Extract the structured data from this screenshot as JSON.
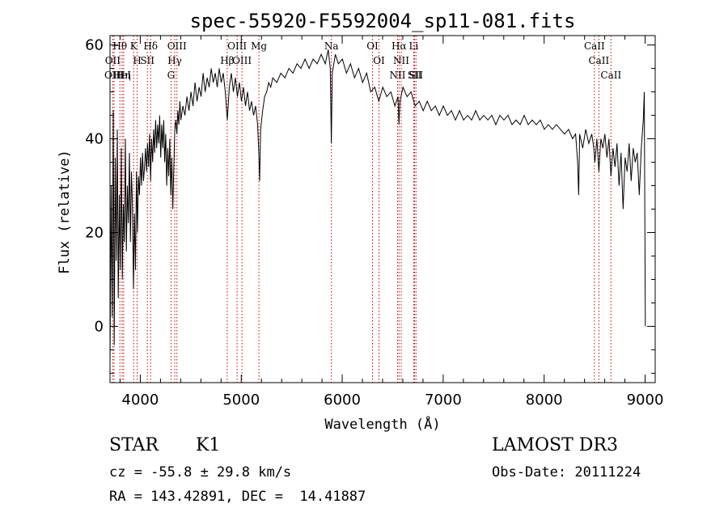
{
  "chart_data": {
    "type": "line",
    "title": "spec-55920-F5592004_sp11-081.fits",
    "xlabel": "Wavelength (Å)",
    "ylabel": "Flux (relative)",
    "xlim": [
      3700,
      9100
    ],
    "ylim": [
      -12,
      62
    ],
    "x_ticks": [
      4000,
      5000,
      6000,
      7000,
      8000,
      9000
    ],
    "y_ticks": [
      0,
      20,
      40,
      60
    ],
    "x_minor_step": 200,
    "y_minor_step": 5,
    "series": [
      {
        "name": "flux",
        "points": [
          [
            3700,
            -8
          ],
          [
            3712,
            30
          ],
          [
            3722,
            2
          ],
          [
            3732,
            46
          ],
          [
            3742,
            -4
          ],
          [
            3752,
            36
          ],
          [
            3762,
            14
          ],
          [
            3772,
            42
          ],
          [
            3782,
            6
          ],
          [
            3792,
            28
          ],
          [
            3802,
            12
          ],
          [
            3812,
            38
          ],
          [
            3822,
            10
          ],
          [
            3832,
            26
          ],
          [
            3842,
            18
          ],
          [
            3852,
            40
          ],
          [
            3862,
            16
          ],
          [
            3872,
            30
          ],
          [
            3882,
            22
          ],
          [
            3892,
            37
          ],
          [
            3902,
            18
          ],
          [
            3912,
            33
          ],
          [
            3922,
            26
          ],
          [
            3932,
            8
          ],
          [
            3942,
            24
          ],
          [
            3952,
            12
          ],
          [
            3962,
            33
          ],
          [
            3972,
            20
          ],
          [
            3982,
            32
          ],
          [
            3992,
            28
          ],
          [
            4002,
            36
          ],
          [
            4012,
            30
          ],
          [
            4022,
            37
          ],
          [
            4032,
            31
          ],
          [
            4042,
            34
          ],
          [
            4052,
            38
          ],
          [
            4062,
            33
          ],
          [
            4072,
            39
          ],
          [
            4082,
            34
          ],
          [
            4092,
            41
          ],
          [
            4102,
            31
          ],
          [
            4112,
            40
          ],
          [
            4122,
            35
          ],
          [
            4132,
            42
          ],
          [
            4142,
            37
          ],
          [
            4152,
            44
          ],
          [
            4162,
            38
          ],
          [
            4172,
            43
          ],
          [
            4182,
            39
          ],
          [
            4192,
            45
          ],
          [
            4202,
            36
          ],
          [
            4212,
            43
          ],
          [
            4222,
            38
          ],
          [
            4232,
            44
          ],
          [
            4242,
            35
          ],
          [
            4252,
            41
          ],
          [
            4262,
            30
          ],
          [
            4272,
            38
          ],
          [
            4282,
            32
          ],
          [
            4292,
            40
          ],
          [
            4302,
            28
          ],
          [
            4312,
            36
          ],
          [
            4322,
            25
          ],
          [
            4332,
            34
          ],
          [
            4342,
            42
          ],
          [
            4352,
            44
          ],
          [
            4362,
            41
          ],
          [
            4372,
            46
          ],
          [
            4382,
            43
          ],
          [
            4392,
            48
          ],
          [
            4402,
            44
          ],
          [
            4422,
            47
          ],
          [
            4442,
            45
          ],
          [
            4462,
            49
          ],
          [
            4482,
            46
          ],
          [
            4502,
            50
          ],
          [
            4522,
            47
          ],
          [
            4542,
            52
          ],
          [
            4562,
            48
          ],
          [
            4582,
            51
          ],
          [
            4602,
            49
          ],
          [
            4622,
            54
          ],
          [
            4642,
            50
          ],
          [
            4662,
            53
          ],
          [
            4682,
            51
          ],
          [
            4702,
            55
          ],
          [
            4722,
            52
          ],
          [
            4742,
            54
          ],
          [
            4762,
            51
          ],
          [
            4782,
            55
          ],
          [
            4802,
            52
          ],
          [
            4822,
            54
          ],
          [
            4842,
            50
          ],
          [
            4862,
            44
          ],
          [
            4882,
            51
          ],
          [
            4902,
            54
          ],
          [
            4922,
            50
          ],
          [
            4942,
            53
          ],
          [
            4962,
            49
          ],
          [
            4982,
            52
          ],
          [
            5002,
            48
          ],
          [
            5022,
            51
          ],
          [
            5042,
            47
          ],
          [
            5062,
            50
          ],
          [
            5082,
            46
          ],
          [
            5102,
            48
          ],
          [
            5122,
            45
          ],
          [
            5142,
            47
          ],
          [
            5162,
            43
          ],
          [
            5172,
            38
          ],
          [
            5182,
            31
          ],
          [
            5192,
            42
          ],
          [
            5212,
            46
          ],
          [
            5232,
            49
          ],
          [
            5252,
            50
          ],
          [
            5272,
            52
          ],
          [
            5292,
            51
          ],
          [
            5312,
            53
          ],
          [
            5352,
            52
          ],
          [
            5392,
            54
          ],
          [
            5432,
            53
          ],
          [
            5472,
            55
          ],
          [
            5512,
            54
          ],
          [
            5552,
            56
          ],
          [
            5592,
            55
          ],
          [
            5632,
            57
          ],
          [
            5672,
            55
          ],
          [
            5712,
            57
          ],
          [
            5752,
            56
          ],
          [
            5792,
            58
          ],
          [
            5832,
            56
          ],
          [
            5862,
            59
          ],
          [
            5882,
            55
          ],
          [
            5892,
            39
          ],
          [
            5902,
            54
          ],
          [
            5932,
            58
          ],
          [
            5962,
            56
          ],
          [
            6002,
            57
          ],
          [
            6042,
            54
          ],
          [
            6082,
            56
          ],
          [
            6122,
            53
          ],
          [
            6162,
            55
          ],
          [
            6202,
            52
          ],
          [
            6242,
            54
          ],
          [
            6282,
            50
          ],
          [
            6322,
            51
          ],
          [
            6362,
            48
          ],
          [
            6402,
            51
          ],
          [
            6442,
            49
          ],
          [
            6482,
            50
          ],
          [
            6522,
            47
          ],
          [
            6552,
            49
          ],
          [
            6562,
            43
          ],
          [
            6572,
            48
          ],
          [
            6602,
            51
          ],
          [
            6642,
            49
          ],
          [
            6682,
            50
          ],
          [
            6722,
            47
          ],
          [
            6762,
            48
          ],
          [
            6802,
            46
          ],
          [
            6842,
            48
          ],
          [
            6882,
            46
          ],
          [
            6922,
            47
          ],
          [
            6962,
            45
          ],
          [
            7002,
            47
          ],
          [
            7042,
            45
          ],
          [
            7082,
            46
          ],
          [
            7122,
            44
          ],
          [
            7162,
            46
          ],
          [
            7202,
            44
          ],
          [
            7242,
            45
          ],
          [
            7282,
            44
          ],
          [
            7322,
            46
          ],
          [
            7362,
            44
          ],
          [
            7402,
            45
          ],
          [
            7442,
            44
          ],
          [
            7482,
            45
          ],
          [
            7522,
            43
          ],
          [
            7562,
            45
          ],
          [
            7602,
            44
          ],
          [
            7642,
            45
          ],
          [
            7682,
            43
          ],
          [
            7722,
            44
          ],
          [
            7762,
            43
          ],
          [
            7802,
            45
          ],
          [
            7842,
            43
          ],
          [
            7882,
            44
          ],
          [
            7922,
            43
          ],
          [
            7962,
            44
          ],
          [
            8002,
            42
          ],
          [
            8042,
            43
          ],
          [
            8082,
            42
          ],
          [
            8122,
            43
          ],
          [
            8162,
            42
          ],
          [
            8202,
            41
          ],
          [
            8242,
            42
          ],
          [
            8282,
            40
          ],
          [
            8312,
            41
          ],
          [
            8332,
            35
          ],
          [
            8342,
            28
          ],
          [
            8352,
            41
          ],
          [
            8382,
            38
          ],
          [
            8412,
            42
          ],
          [
            8442,
            39
          ],
          [
            8472,
            41
          ],
          [
            8492,
            38
          ],
          [
            8502,
            35
          ],
          [
            8522,
            40
          ],
          [
            8542,
            33
          ],
          [
            8562,
            40
          ],
          [
            8582,
            38
          ],
          [
            8602,
            41
          ],
          [
            8622,
            36
          ],
          [
            8642,
            40
          ],
          [
            8662,
            32
          ],
          [
            8682,
            38
          ],
          [
            8702,
            34
          ],
          [
            8722,
            39
          ],
          [
            8742,
            30
          ],
          [
            8762,
            37
          ],
          [
            8782,
            25
          ],
          [
            8802,
            36
          ],
          [
            8822,
            33
          ],
          [
            8842,
            39
          ],
          [
            8862,
            31
          ],
          [
            8882,
            38
          ],
          [
            8902,
            35
          ],
          [
            8922,
            37
          ],
          [
            8942,
            28
          ],
          [
            8962,
            38
          ],
          [
            8982,
            44
          ],
          [
            8992,
            50
          ],
          [
            9002,
            0
          ]
        ]
      }
    ],
    "line_labels": [
      {
        "label": "Hθ",
        "x": 3798
      },
      {
        "label": "OII",
        "x": 3727
      },
      {
        "label": "OIII",
        "x": 3740
      },
      {
        "label": "K",
        "x": 3934
      },
      {
        "label": "HeI",
        "x": 3820
      },
      {
        "label": "Hη",
        "x": 3835
      },
      {
        "label": "Hδ",
        "x": 4102
      },
      {
        "label": "SII",
        "x": 4070
      },
      {
        "label": "H",
        "x": 3969
      },
      {
        "label": "OIII",
        "x": 4363
      },
      {
        "label": "Hγ",
        "x": 4341
      },
      {
        "label": "G",
        "x": 4304
      },
      {
        "label": "OIII",
        "x": 4959
      },
      {
        "label": "OIII",
        "x": 5007
      },
      {
        "label": "Hβ",
        "x": 4861
      },
      {
        "label": "Mg",
        "x": 5175
      },
      {
        "label": "Na",
        "x": 5893
      },
      {
        "label": "OI",
        "x": 6300
      },
      {
        "label": "OI",
        "x": 6364
      },
      {
        "label": "Hα",
        "x": 6563
      },
      {
        "label": "NII",
        "x": 6548
      },
      {
        "label": "NII",
        "x": 6584
      },
      {
        "label": "SII",
        "x": 6717
      },
      {
        "label": "SII",
        "x": 6731
      },
      {
        "label": "Li",
        "x": 6708
      },
      {
        "label": "CaII",
        "x": 8498
      },
      {
        "label": "CaII",
        "x": 8542
      },
      {
        "label": "CaII",
        "x": 8662
      }
    ]
  },
  "info": {
    "class": "STAR",
    "subclass": "K1",
    "survey": "LAMOST DR3",
    "cz": "cz = -55.8 ± 29.8 km/s",
    "obs_date": "Obs-Date: 20111224",
    "coords": "RA = 143.42891, DEC =  14.41887"
  }
}
